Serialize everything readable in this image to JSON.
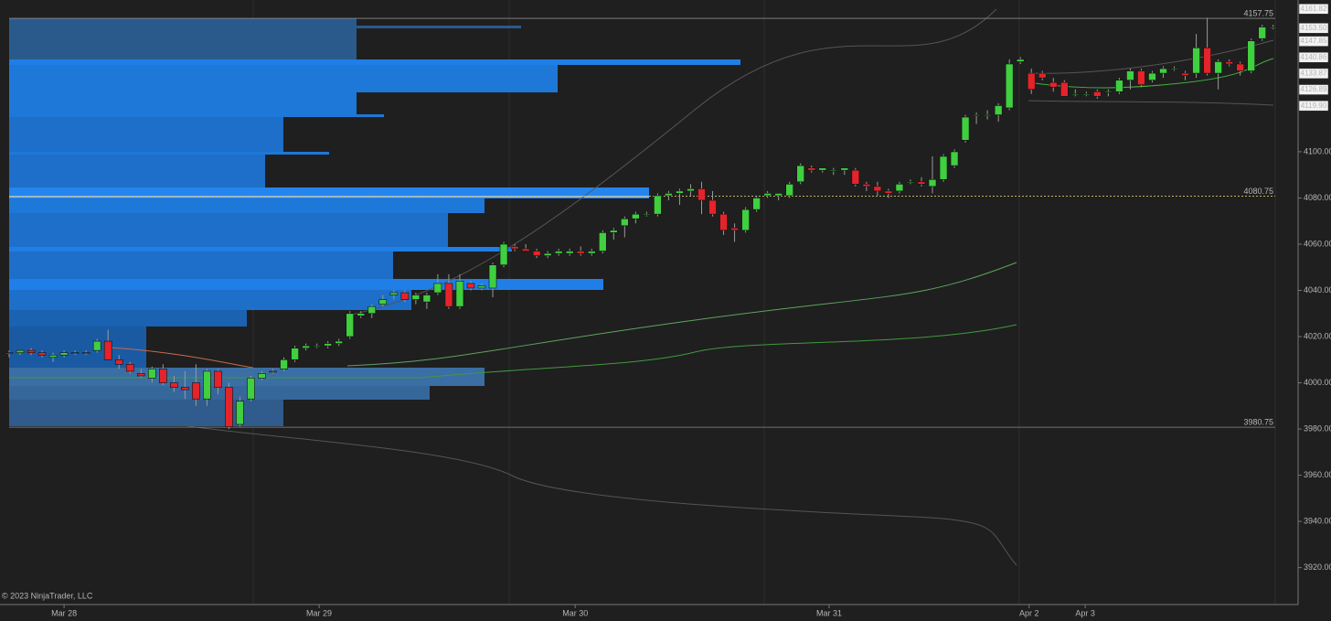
{
  "chart_data": {
    "type": "candlestick",
    "ohlc": [
      [
        4013,
        4014,
        4011,
        4013
      ],
      [
        4013,
        4014,
        4012,
        4014
      ],
      [
        4014,
        4015,
        4012,
        4013
      ],
      [
        4013,
        4014,
        4011,
        4012
      ],
      [
        4011,
        4013,
        4009,
        4012
      ],
      [
        4012,
        4014,
        4011,
        4013
      ],
      [
        4013,
        4014,
        4012,
        4013
      ],
      [
        4013,
        4014,
        4012,
        4013
      ],
      [
        4014,
        4019,
        4013,
        4018
      ],
      [
        4018,
        4023,
        4010,
        4010
      ],
      [
        4010,
        4012,
        4006,
        4008
      ],
      [
        4008,
        4009,
        4004,
        4005
      ],
      [
        4004,
        4006,
        4002,
        4003
      ],
      [
        4002,
        4007,
        4000,
        4006
      ],
      [
        4006,
        4008,
        3999,
        4000
      ],
      [
        4000,
        4003,
        3996,
        3998
      ],
      [
        3998,
        4005,
        3993,
        3997
      ],
      [
        4000,
        4008,
        3990,
        3993
      ],
      [
        3993,
        4006,
        3990,
        4005
      ],
      [
        4005,
        4006,
        3995,
        3998
      ],
      [
        3998,
        4000,
        3980,
        3981
      ],
      [
        3982,
        3994,
        3981,
        3992
      ],
      [
        3993,
        4003,
        3992,
        4002
      ],
      [
        4002,
        4005,
        4001,
        4004
      ],
      [
        4005,
        4006,
        4004,
        4005
      ],
      [
        4006,
        4011,
        4005,
        4010
      ],
      [
        4010,
        4016,
        4009,
        4015
      ],
      [
        4015,
        4017,
        4014,
        4016
      ],
      [
        4016,
        4017,
        4015,
        4016
      ],
      [
        4016,
        4018,
        4015,
        4017
      ],
      [
        4017,
        4019,
        4016,
        4018
      ],
      [
        4020,
        4031,
        4019,
        4030
      ],
      [
        4029,
        4031,
        4028,
        4030
      ],
      [
        4030,
        4034,
        4028,
        4033
      ],
      [
        4034,
        4038,
        4033,
        4036
      ],
      [
        4038,
        4040,
        4036,
        4039
      ],
      [
        4039,
        4040,
        4035,
        4036
      ],
      [
        4036,
        4039,
        4034,
        4038
      ],
      [
        4035,
        4039,
        4032,
        4038
      ],
      [
        4039,
        4047,
        4038,
        4043
      ],
      [
        4043,
        4047,
        4032,
        4033
      ],
      [
        4033,
        4047,
        4032,
        4044
      ],
      [
        4043,
        4044,
        4040,
        4041
      ],
      [
        4041,
        4043,
        4040,
        4042
      ],
      [
        4041,
        4052,
        4037,
        4051
      ],
      [
        4051,
        4061,
        4050,
        4060
      ],
      [
        4059,
        4060,
        4057,
        4058
      ],
      [
        4058,
        4060,
        4057,
        4057
      ],
      [
        4057,
        4058,
        4054,
        4055
      ],
      [
        4055,
        4057,
        4054,
        4056
      ],
      [
        4056,
        4058,
        4055,
        4057
      ],
      [
        4056,
        4058,
        4055,
        4057
      ],
      [
        4057,
        4059,
        4055,
        4056
      ],
      [
        4056,
        4058,
        4055,
        4057
      ],
      [
        4057,
        4066,
        4056,
        4065
      ],
      [
        4065,
        4067,
        4062,
        4066
      ],
      [
        4068,
        4072,
        4063,
        4071
      ],
      [
        4071,
        4074,
        4069,
        4073
      ],
      [
        4073,
        4074,
        4072,
        4073
      ],
      [
        4073,
        4082,
        4072,
        4081
      ],
      [
        4081,
        4083,
        4079,
        4082
      ],
      [
        4082,
        4084,
        4077,
        4083
      ],
      [
        4083,
        4086,
        4081,
        4084
      ],
      [
        4084,
        4087,
        4073,
        4079
      ],
      [
        4079,
        4083,
        4072,
        4073
      ],
      [
        4073,
        4074,
        4064,
        4066
      ],
      [
        4067,
        4069,
        4061,
        4066
      ],
      [
        4066,
        4076,
        4065,
        4075
      ],
      [
        4075,
        4081,
        4074,
        4080
      ],
      [
        4081,
        4083,
        4080,
        4082
      ],
      [
        4081,
        4082,
        4079,
        4082
      ],
      [
        4081,
        4087,
        4080,
        4086
      ],
      [
        4087,
        4095,
        4086,
        4094
      ],
      [
        4093,
        4094,
        4091,
        4092
      ],
      [
        4092,
        4093,
        4091,
        4093
      ],
      [
        4092,
        4093,
        4090,
        4092
      ],
      [
        4092,
        4093,
        4090,
        4093
      ],
      [
        4092,
        4093,
        4085,
        4086
      ],
      [
        4086,
        4087,
        4083,
        4085
      ],
      [
        4085,
        4087,
        4081,
        4083
      ],
      [
        4083,
        4084,
        4080,
        4082
      ],
      [
        4083,
        4087,
        4082,
        4086
      ],
      [
        4087,
        4088,
        4086,
        4087
      ],
      [
        4087,
        4089,
        4085,
        4086
      ],
      [
        4085,
        4098,
        4082,
        4088
      ],
      [
        4088,
        4099,
        4087,
        4098
      ],
      [
        4094,
        4101,
        4093,
        4100
      ],
      [
        4105,
        4116,
        4104,
        4115
      ],
      [
        4116,
        4117,
        4112,
        4116
      ],
      [
        4116,
        4118,
        4114,
        4116
      ],
      [
        4116,
        4121,
        4113,
        4120
      ],
      [
        4119,
        4140,
        4118,
        4138
      ],
      [
        4139,
        4141,
        4138,
        4140
      ],
      [
        4134,
        4136,
        4125,
        4127
      ],
      [
        4134,
        4135,
        4131,
        4132
      ],
      [
        4130,
        4132,
        4126,
        4128
      ],
      [
        4130,
        4131,
        4124,
        4124
      ],
      [
        4125,
        4127,
        4124,
        4125
      ],
      [
        4125,
        4126,
        4124,
        4125
      ],
      [
        4126,
        4127,
        4123,
        4124
      ],
      [
        4126,
        4127,
        4124,
        4126
      ],
      [
        4126,
        4132,
        4125,
        4131
      ],
      [
        4131,
        4136,
        4127,
        4135
      ],
      [
        4135,
        4136,
        4128,
        4129
      ],
      [
        4131,
        4135,
        4130,
        4134
      ],
      [
        4134,
        4137,
        4132,
        4136
      ],
      [
        4136,
        4137,
        4135,
        4136
      ],
      [
        4134,
        4135,
        4131,
        4133
      ],
      [
        4134,
        4151,
        4132,
        4145
      ],
      [
        4145,
        4158,
        4133,
        4134
      ],
      [
        4134,
        4140,
        4127,
        4139
      ],
      [
        4139,
        4140,
        4137,
        4138
      ],
      [
        4138,
        4139,
        4133,
        4135
      ],
      [
        4135,
        4149,
        4134,
        4148
      ],
      [
        4149,
        4155,
        4148,
        4154
      ],
      [
        4154,
        4155,
        4153,
        4154
      ]
    ],
    "up_color": "#3fcf3f",
    "down_color": "#e5232a",
    "xlim": [
      -0.83,
      117.1
    ],
    "xticks": [
      {
        "value": 5.0,
        "label": "Mar 28"
      },
      {
        "value": 28.2,
        "label": "Mar 29"
      },
      {
        "value": 51.5,
        "label": "Mar 30"
      },
      {
        "value": 74.6,
        "label": "Mar 31"
      },
      {
        "value": 92.8,
        "label": "Apr 2"
      },
      {
        "value": 97.9,
        "label": "Apr 3"
      }
    ],
    "ylim": [
      3904.4,
      4165.7
    ],
    "yticks": [
      {
        "value": 3920,
        "label": "3920.00"
      },
      {
        "value": 3940,
        "label": "3940.00"
      },
      {
        "value": 3960,
        "label": "3960.00"
      },
      {
        "value": 3980,
        "label": "3980.00"
      },
      {
        "value": 4000,
        "label": "4000.00"
      },
      {
        "value": 4020,
        "label": "4020.00"
      },
      {
        "value": 4040,
        "label": "4040.00"
      },
      {
        "value": 4060,
        "label": "4060.00"
      },
      {
        "value": 4080,
        "label": "4080.00"
      },
      {
        "value": 4100,
        "label": "4100.00"
      }
    ],
    "price_markers": [
      {
        "value": 4161.82,
        "label": "4161.82"
      },
      {
        "value": 4153.5,
        "label": "4153.50"
      },
      {
        "value": 4147.85,
        "label": "4147.85"
      },
      {
        "value": 4140.86,
        "label": "4140.86"
      },
      {
        "value": 4133.87,
        "label": "4133.87"
      },
      {
        "value": 4126.89,
        "label": "4126.89"
      },
      {
        "value": 4119.9,
        "label": "4119.90"
      }
    ],
    "levels": [
      {
        "value": 4157.75,
        "color": "#8a8a8a"
      },
      {
        "value": 4080.75,
        "color": "#d9c66a"
      },
      {
        "value": 3980.75,
        "color": "#8a8a8a"
      }
    ],
    "copyright": "© 2023 NinjaTrader, LLC"
  }
}
